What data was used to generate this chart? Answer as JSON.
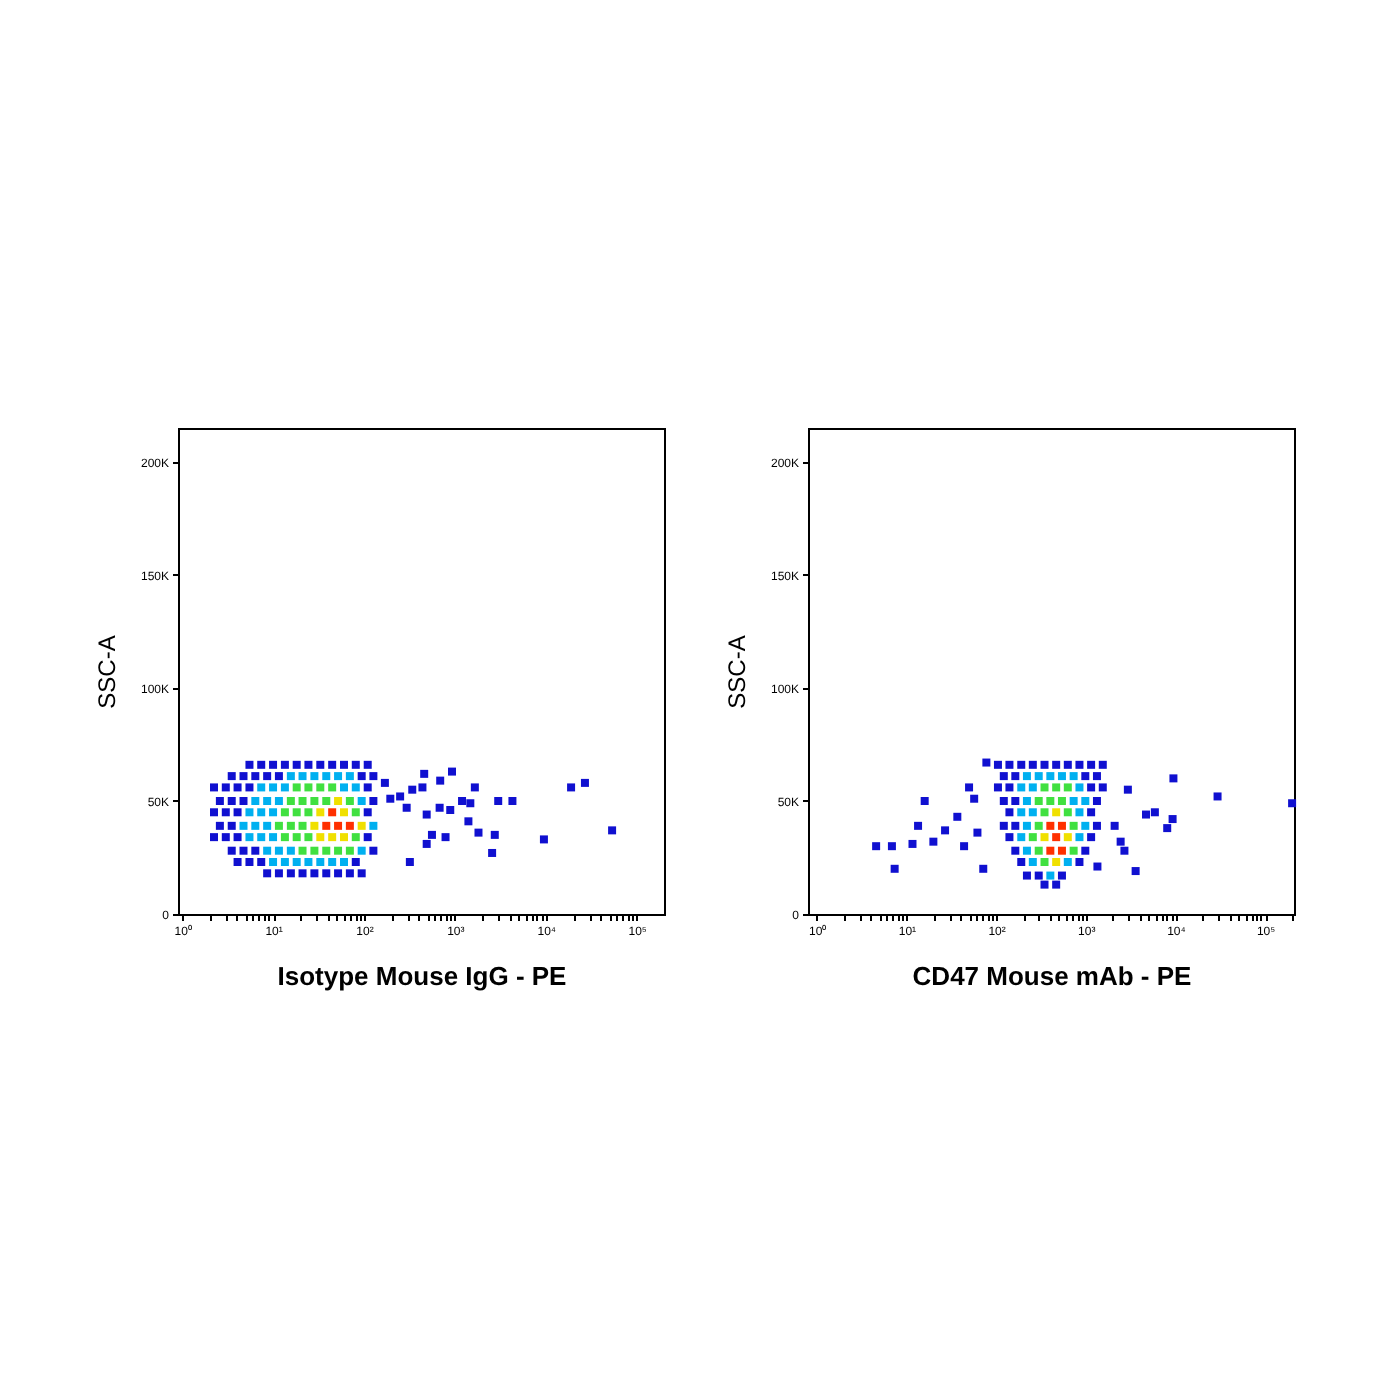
{
  "chart_data": [
    {
      "type": "scatter",
      "xlabel": "Isotype Mouse IgG - PE",
      "ylabel": "SSC-A",
      "log": "x",
      "marker": "square",
      "xlim": [
        0.9,
        200000
      ],
      "ylim": [
        0,
        215000
      ],
      "xticks": [
        {
          "value": 1,
          "label": "10⁰"
        },
        {
          "value": 2,
          "label": null
        },
        {
          "value": 3,
          "label": null
        },
        {
          "value": 4,
          "label": null
        },
        {
          "value": 5,
          "label": null
        },
        {
          "value": 6,
          "label": null
        },
        {
          "value": 7,
          "label": null
        },
        {
          "value": 8,
          "label": null
        },
        {
          "value": 9,
          "label": null
        },
        {
          "value": 10,
          "label": "10¹"
        },
        {
          "value": 20,
          "label": null
        },
        {
          "value": 30,
          "label": null
        },
        {
          "value": 40,
          "label": null
        },
        {
          "value": 50,
          "label": null
        },
        {
          "value": 60,
          "label": null
        },
        {
          "value": 70,
          "label": null
        },
        {
          "value": 80,
          "label": null
        },
        {
          "value": 90,
          "label": null
        },
        {
          "value": 100,
          "label": "10²"
        },
        {
          "value": 200,
          "label": null
        },
        {
          "value": 300,
          "label": null
        },
        {
          "value": 400,
          "label": null
        },
        {
          "value": 500,
          "label": null
        },
        {
          "value": 600,
          "label": null
        },
        {
          "value": 700,
          "label": null
        },
        {
          "value": 800,
          "label": null
        },
        {
          "value": 900,
          "label": null
        },
        {
          "value": 1000,
          "label": "10³"
        },
        {
          "value": 2000,
          "label": null
        },
        {
          "value": 3000,
          "label": null
        },
        {
          "value": 4000,
          "label": null
        },
        {
          "value": 5000,
          "label": null
        },
        {
          "value": 6000,
          "label": null
        },
        {
          "value": 7000,
          "label": null
        },
        {
          "value": 8000,
          "label": null
        },
        {
          "value": 9000,
          "label": null
        },
        {
          "value": 10000,
          "label": "10⁴"
        },
        {
          "value": 20000,
          "label": null
        },
        {
          "value": 30000,
          "label": null
        },
        {
          "value": 40000,
          "label": null
        },
        {
          "value": 50000,
          "label": null
        },
        {
          "value": 60000,
          "label": null
        },
        {
          "value": 70000,
          "label": null
        },
        {
          "value": 80000,
          "label": null
        },
        {
          "value": 90000,
          "label": null
        },
        {
          "value": 100000,
          "label": "10⁵"
        }
      ],
      "yticks": [
        0,
        {
          "value": 50000,
          "label": "50K"
        },
        {
          "value": 100000,
          "label": "100K"
        },
        {
          "value": 150000,
          "label": "150K"
        },
        {
          "value": 200000,
          "label": "200K"
        }
      ],
      "series": [
        {
          "color": "#1010d0",
          "x": [
            5.5,
            7.41,
            10,
            13.5,
            18.2,
            24.5,
            33.1,
            44.7,
            60.3,
            81.3,
            110,
            3.51,
            4.73,
            6.38,
            8.61,
            11.6,
            94.4,
            127,
            2.24,
            3.02,
            4.07,
            5.5,
            110,
            2.6,
            3.51,
            4.73,
            127,
            2.24,
            3.02,
            4.07,
            110,
            2.6,
            3.51,
            2.24,
            3.02,
            4.07,
            110,
            3.51,
            4.73,
            6.38,
            127,
            4.07,
            5.5,
            7.41,
            81.3,
            8.61,
            11.6,
            15.7,
            21.1,
            28.5,
            38.5,
            51.9,
            70,
            94.4,
            460,
            930,
            690,
            440,
            1660,
            250,
            340,
            195,
            170,
            295,
            490,
            680,
            890,
            1200,
            1480,
            3000,
            4300,
            19000,
            27000,
            1410,
            1820,
            2750,
            560,
            790,
            490,
            320,
            2570,
            9550,
            53700
          ],
          "values": [
            66000,
            66000,
            66000,
            66000,
            66000,
            66000,
            66000,
            66000,
            66000,
            66000,
            66000,
            61000,
            61000,
            61000,
            61000,
            61000,
            61000,
            61000,
            56000,
            56000,
            56000,
            56000,
            56000,
            50000,
            50000,
            50000,
            50000,
            45000,
            45000,
            45000,
            45000,
            39000,
            39000,
            34000,
            34000,
            34000,
            34000,
            28000,
            28000,
            28000,
            28000,
            23000,
            23000,
            23000,
            23000,
            18000,
            18000,
            18000,
            18000,
            18000,
            18000,
            18000,
            18000,
            18000,
            62000,
            63000,
            59000,
            56000,
            56000,
            52000,
            55000,
            51000,
            58000,
            47000,
            44000,
            47000,
            46000,
            50000,
            49000,
            50000,
            50000,
            56000,
            58000,
            41000,
            36000,
            35000,
            35000,
            34000,
            31000,
            23000,
            27000,
            33000,
            37000
          ]
        },
        {
          "color": "#00b0f0",
          "x": [
            15.7,
            21.1,
            28.5,
            38.5,
            51.9,
            70,
            7.41,
            10,
            13.5,
            60.3,
            81.3,
            6.38,
            8.61,
            11.6,
            94.4,
            5.5,
            7.41,
            10,
            4.73,
            6.38,
            8.61,
            127,
            5.5,
            7.41,
            10,
            8.61,
            11.6,
            15.7,
            94.4,
            10,
            13.5,
            18.2,
            24.5,
            33.1,
            44.7,
            60.3
          ],
          "values": [
            61000,
            61000,
            61000,
            61000,
            61000,
            61000,
            56000,
            56000,
            56000,
            56000,
            56000,
            50000,
            50000,
            50000,
            50000,
            45000,
            45000,
            45000,
            39000,
            39000,
            39000,
            39000,
            34000,
            34000,
            34000,
            28000,
            28000,
            28000,
            28000,
            23000,
            23000,
            23000,
            23000,
            23000,
            23000,
            23000
          ]
        },
        {
          "color": "#40e040",
          "x": [
            18.2,
            24.5,
            33.1,
            44.7,
            15.7,
            21.1,
            28.5,
            38.5,
            70,
            13.5,
            18.2,
            24.5,
            81.3,
            11.6,
            15.7,
            21.1,
            13.5,
            18.2,
            24.5,
            81.3,
            21.1,
            28.5,
            38.5,
            51.9,
            70
          ],
          "values": [
            56000,
            56000,
            56000,
            56000,
            50000,
            50000,
            50000,
            50000,
            50000,
            45000,
            45000,
            45000,
            45000,
            39000,
            39000,
            39000,
            34000,
            34000,
            34000,
            34000,
            28000,
            28000,
            28000,
            28000,
            28000
          ]
        },
        {
          "color": "#f0e000",
          "x": [
            51.9,
            33.1,
            60.3,
            28.5,
            94.4,
            33.1,
            44.7,
            60.3
          ],
          "values": [
            50000,
            45000,
            45000,
            39000,
            39000,
            34000,
            34000,
            34000
          ]
        },
        {
          "color": "#ff3000",
          "x": [
            44.7,
            38.5,
            51.9,
            70
          ],
          "values": [
            45000,
            39000,
            39000,
            39000
          ]
        }
      ]
    },
    {
      "type": "scatter",
      "xlabel": "CD47 Mouse mAb - PE",
      "ylabel": "SSC-A",
      "log": "x",
      "marker": "square",
      "xlim": [
        0.8,
        210000
      ],
      "ylim": [
        0,
        215000
      ],
      "xticks": [
        {
          "value": 1,
          "label": "10⁰"
        },
        {
          "value": 2,
          "label": null
        },
        {
          "value": 3,
          "label": null
        },
        {
          "value": 4,
          "label": null
        },
        {
          "value": 5,
          "label": null
        },
        {
          "value": 6,
          "label": null
        },
        {
          "value": 7,
          "label": null
        },
        {
          "value": 8,
          "label": null
        },
        {
          "value": 9,
          "label": null
        },
        {
          "value": 10,
          "label": "10¹"
        },
        {
          "value": 20,
          "label": null
        },
        {
          "value": 30,
          "label": null
        },
        {
          "value": 40,
          "label": null
        },
        {
          "value": 50,
          "label": null
        },
        {
          "value": 60,
          "label": null
        },
        {
          "value": 70,
          "label": null
        },
        {
          "value": 80,
          "label": null
        },
        {
          "value": 90,
          "label": null
        },
        {
          "value": 100,
          "label": "10²"
        },
        {
          "value": 200,
          "label": null
        },
        {
          "value": 300,
          "label": null
        },
        {
          "value": 400,
          "label": null
        },
        {
          "value": 500,
          "label": null
        },
        {
          "value": 600,
          "label": null
        },
        {
          "value": 700,
          "label": null
        },
        {
          "value": 800,
          "label": null
        },
        {
          "value": 900,
          "label": null
        },
        {
          "value": 1000,
          "label": "10³"
        },
        {
          "value": 2000,
          "label": null
        },
        {
          "value": 3000,
          "label": null
        },
        {
          "value": 4000,
          "label": null
        },
        {
          "value": 5000,
          "label": null
        },
        {
          "value": 6000,
          "label": null
        },
        {
          "value": 7000,
          "label": null
        },
        {
          "value": 8000,
          "label": null
        },
        {
          "value": 9000,
          "label": null
        },
        {
          "value": 10000,
          "label": "10⁴"
        },
        {
          "value": 20000,
          "label": null
        },
        {
          "value": 30000,
          "label": null
        },
        {
          "value": 40000,
          "label": null
        },
        {
          "value": 50000,
          "label": null
        },
        {
          "value": 60000,
          "label": null
        },
        {
          "value": 70000,
          "label": null
        },
        {
          "value": 80000,
          "label": null
        },
        {
          "value": 90000,
          "label": null
        },
        {
          "value": 100000,
          "label": "10⁵"
        },
        {
          "value": 200000,
          "label": null
        }
      ],
      "yticks": [
        0,
        {
          "value": 50000,
          "label": "50K"
        },
        {
          "value": 100000,
          "label": "100K"
        },
        {
          "value": 150000,
          "label": "150K"
        },
        {
          "value": 200000,
          "label": "200K"
        }
      ],
      "series": [
        {
          "color": "#1010d0",
          "x": [
            105,
            141,
            191,
            257,
            347,
            468,
            631,
            851,
            1148,
            1549,
            122,
            164,
            989,
            1334,
            105,
            141,
            1148,
            1549,
            122,
            164,
            1334,
            141,
            1148,
            122,
            164,
            1334,
            141,
            1148,
            164,
            989,
            191,
            851,
            221,
            299,
            543,
            347,
            468,
            4.6,
            6.9,
            7.4,
            11.7,
            13.5,
            16,
            20,
            27,
            37,
            44,
            50,
            57,
            62,
            78,
            72,
            1350,
            2100,
            2450,
            2700,
            3600,
            2950,
            4700,
            5900,
            8100,
            9300,
            9500,
            29500,
            200000
          ],
          "values": [
            66000,
            66000,
            66000,
            66000,
            66000,
            66000,
            66000,
            66000,
            66000,
            66000,
            61000,
            61000,
            61000,
            61000,
            56000,
            56000,
            56000,
            56000,
            50000,
            50000,
            50000,
            45000,
            45000,
            39000,
            39000,
            39000,
            34000,
            34000,
            28000,
            28000,
            23000,
            23000,
            17000,
            17000,
            17000,
            13000,
            13000,
            30000,
            30000,
            20000,
            31000,
            39000,
            50000,
            32000,
            37000,
            43000,
            30000,
            56000,
            51000,
            36000,
            67000,
            20000,
            21000,
            39000,
            32000,
            28000,
            19000,
            55000,
            44000,
            45000,
            38000,
            42000,
            60000,
            52000,
            49000
          ]
        },
        {
          "color": "#00b0f0",
          "x": [
            221,
            299,
            403,
            543,
            733,
            191,
            257,
            851,
            221,
            733,
            989,
            191,
            257,
            851,
            221,
            989,
            191,
            851,
            221,
            257,
            631,
            403
          ],
          "values": [
            61000,
            61000,
            61000,
            61000,
            61000,
            56000,
            56000,
            56000,
            50000,
            50000,
            50000,
            45000,
            45000,
            45000,
            39000,
            39000,
            34000,
            34000,
            28000,
            23000,
            23000,
            17000
          ]
        },
        {
          "color": "#40e040",
          "x": [
            347,
            468,
            631,
            299,
            403,
            543,
            347,
            631,
            299,
            733,
            257,
            299,
            733,
            347
          ],
          "values": [
            56000,
            56000,
            56000,
            50000,
            50000,
            50000,
            45000,
            45000,
            39000,
            39000,
            34000,
            28000,
            28000,
            23000
          ]
        },
        {
          "color": "#f0e000",
          "x": [
            468,
            347,
            631,
            468
          ],
          "values": [
            45000,
            34000,
            34000,
            23000
          ]
        },
        {
          "color": "#ff3000",
          "x": [
            403,
            543,
            468,
            403,
            543
          ],
          "values": [
            39000,
            39000,
            34000,
            28000,
            28000
          ]
        }
      ]
    }
  ]
}
